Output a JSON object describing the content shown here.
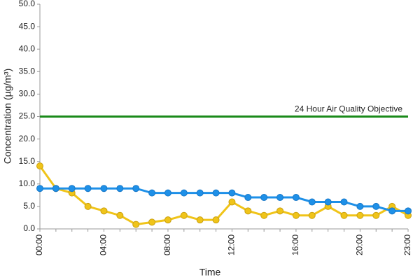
{
  "chart_data": {
    "type": "line",
    "x_label": "Time",
    "y_label": "Concentration (µg/m³)",
    "categories": [
      "00:00",
      null,
      null,
      null,
      "04:00",
      null,
      null,
      null,
      "08:00",
      null,
      null,
      null,
      "12:00",
      null,
      null,
      null,
      "16:00",
      null,
      null,
      null,
      "20:00",
      null,
      null,
      "23:00"
    ],
    "series": [
      {
        "color": "#1e90e8",
        "values": [
          9,
          9,
          9,
          9,
          9,
          9,
          9,
          8,
          8,
          8,
          8,
          8,
          8,
          7,
          7,
          7,
          7,
          6,
          6,
          6,
          5,
          5,
          4,
          4
        ]
      },
      {
        "color": "#f0c419",
        "values": [
          14,
          9,
          8,
          5,
          4,
          3,
          1,
          1.5,
          2,
          3,
          2,
          2,
          6,
          4,
          3,
          4,
          3,
          3,
          5,
          3,
          3,
          3,
          5,
          3
        ]
      }
    ],
    "objective": {
      "value": 25,
      "label": "24 Hour Air Quality Objective",
      "color": "#1a8a1a"
    },
    "ylim": [
      0,
      50
    ],
    "yticks": [
      {
        "value": 0,
        "label": "0.0"
      },
      {
        "value": 5,
        "label": "5.0"
      },
      {
        "value": 10,
        "label": "10.0"
      },
      {
        "value": 15,
        "label": "15.0"
      },
      {
        "value": 20,
        "label": "20.0"
      },
      {
        "value": 25,
        "label": "25.0"
      },
      {
        "value": 30,
        "label": "30.0"
      },
      {
        "value": 35,
        "label": "35.0"
      },
      {
        "value": 40,
        "label": "40.0"
      },
      {
        "value": 45,
        "label": "45.0"
      },
      {
        "value": 50,
        "label": "50.0"
      }
    ]
  }
}
